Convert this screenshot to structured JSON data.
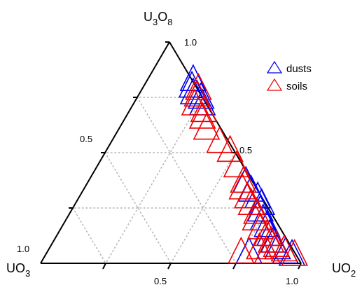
{
  "chart_data": {
    "type": "scatter",
    "subtype": "ternary",
    "title": "",
    "vertices": {
      "top": {
        "main": "U",
        "sub1": "3",
        "mid": "O",
        "sub2": "8"
      },
      "left": {
        "main": "UO",
        "sub": "3"
      },
      "right": {
        "main": "UO",
        "sub": "2"
      }
    },
    "tick_labels": {
      "top_max": "1.0",
      "left_max": "1.0",
      "right_max": "1.0",
      "left_mid": "0.5",
      "right_mid": "0.5",
      "bottom_mid": "0.5"
    },
    "grid": true,
    "legend": {
      "position": "top-right",
      "entries": [
        {
          "name": "dusts",
          "color": "#0000ee"
        },
        {
          "name": "soils",
          "color": "#ee0000"
        }
      ]
    },
    "series": [
      {
        "name": "dusts",
        "color": "#0000ee",
        "points": [
          {
            "U3O8": 0.8,
            "UO2": 0.19,
            "UO3": 0.01
          },
          {
            "U3O8": 0.77,
            "UO2": 0.2,
            "UO3": 0.03
          },
          {
            "U3O8": 0.74,
            "UO2": 0.22,
            "UO3": 0.04
          },
          {
            "U3O8": 0.72,
            "UO2": 0.26,
            "UO3": 0.02
          },
          {
            "U3O8": 0.69,
            "UO2": 0.28,
            "UO3": 0.03
          },
          {
            "U3O8": 0.34,
            "UO2": 0.62,
            "UO3": 0.04
          },
          {
            "U3O8": 0.3,
            "UO2": 0.66,
            "UO3": 0.04
          },
          {
            "U3O8": 0.27,
            "UO2": 0.7,
            "UO3": 0.03
          },
          {
            "U3O8": 0.24,
            "UO2": 0.73,
            "UO3": 0.03
          },
          {
            "U3O8": 0.21,
            "UO2": 0.74,
            "UO3": 0.05
          },
          {
            "U3O8": 0.17,
            "UO2": 0.77,
            "UO3": 0.06
          },
          {
            "U3O8": 0.14,
            "UO2": 0.8,
            "UO3": 0.06
          },
          {
            "U3O8": 0.1,
            "UO2": 0.83,
            "UO3": 0.07
          },
          {
            "U3O8": 0.07,
            "UO2": 0.86,
            "UO3": 0.07
          },
          {
            "U3O8": 0.04,
            "UO2": 0.89,
            "UO3": 0.07
          },
          {
            "U3O8": 0.02,
            "UO2": 0.93,
            "UO3": 0.05
          },
          {
            "U3O8": 0.01,
            "UO2": 0.96,
            "UO3": 0.03
          },
          {
            "U3O8": 0.02,
            "UO2": 0.79,
            "UO3": 0.19
          }
        ]
      },
      {
        "name": "soils",
        "color": "#ee0000",
        "points": [
          {
            "U3O8": 0.76,
            "UO2": 0.23,
            "UO3": 0.01
          },
          {
            "U3O8": 0.73,
            "UO2": 0.24,
            "UO3": 0.03
          },
          {
            "U3O8": 0.69,
            "UO2": 0.25,
            "UO3": 0.06
          },
          {
            "U3O8": 0.66,
            "UO2": 0.3,
            "UO3": 0.04
          },
          {
            "U3O8": 0.63,
            "UO2": 0.31,
            "UO3": 0.06
          },
          {
            "U3O8": 0.58,
            "UO2": 0.35,
            "UO3": 0.07
          },
          {
            "U3O8": 0.52,
            "UO2": 0.43,
            "UO3": 0.05
          },
          {
            "U3O8": 0.48,
            "UO2": 0.49,
            "UO3": 0.03
          },
          {
            "U3O8": 0.41,
            "UO2": 0.55,
            "UO3": 0.04
          },
          {
            "U3O8": 0.34,
            "UO2": 0.61,
            "UO3": 0.05
          },
          {
            "U3O8": 0.31,
            "UO2": 0.62,
            "UO3": 0.07
          },
          {
            "U3O8": 0.27,
            "UO2": 0.66,
            "UO3": 0.07
          },
          {
            "U3O8": 0.24,
            "UO2": 0.69,
            "UO3": 0.07
          },
          {
            "U3O8": 0.2,
            "UO2": 0.73,
            "UO3": 0.07
          },
          {
            "U3O8": 0.17,
            "UO2": 0.74,
            "UO3": 0.09
          },
          {
            "U3O8": 0.13,
            "UO2": 0.78,
            "UO3": 0.09
          },
          {
            "U3O8": 0.1,
            "UO2": 0.82,
            "UO3": 0.08
          },
          {
            "U3O8": 0.07,
            "UO2": 0.85,
            "UO3": 0.08
          },
          {
            "U3O8": 0.05,
            "UO2": 0.88,
            "UO3": 0.07
          },
          {
            "U3O8": 0.03,
            "UO2": 0.92,
            "UO3": 0.05
          },
          {
            "U3O8": 0.01,
            "UO2": 0.97,
            "UO3": 0.02
          },
          {
            "U3O8": 0.02,
            "UO2": 0.76,
            "UO3": 0.22
          },
          {
            "U3O8": 0.04,
            "UO2": 0.82,
            "UO3": 0.14
          },
          {
            "U3O8": 0.02,
            "UO2": 0.86,
            "UO3": 0.12
          }
        ]
      }
    ]
  }
}
